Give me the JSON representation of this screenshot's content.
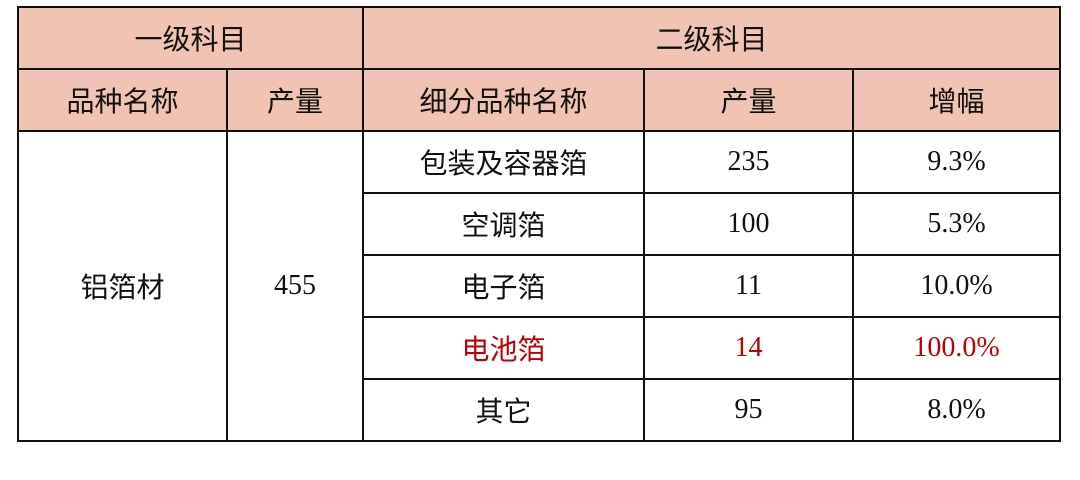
{
  "colors": {
    "header_bg": "#f0c4b4",
    "highlight": "#c00000",
    "border": "#111111"
  },
  "header": {
    "level1": "一级科目",
    "level2": "二级科目",
    "cols": [
      "品种名称",
      "产量",
      "细分品种名称",
      "产量",
      "增幅"
    ]
  },
  "primary": {
    "name": "铝箔材",
    "output": "455"
  },
  "rows": [
    {
      "name": "包装及容器箔",
      "output": "235",
      "growth": "9.3%",
      "highlight": false
    },
    {
      "name": "空调箔",
      "output": "100",
      "growth": "5.3%",
      "highlight": false
    },
    {
      "name": "电子箔",
      "output": "11",
      "growth": "10.0%",
      "highlight": false
    },
    {
      "name": "电池箔",
      "output": "14",
      "growth": "100.0%",
      "highlight": true
    },
    {
      "name": "其它",
      "output": "95",
      "growth": "8.0%",
      "highlight": false
    }
  ]
}
